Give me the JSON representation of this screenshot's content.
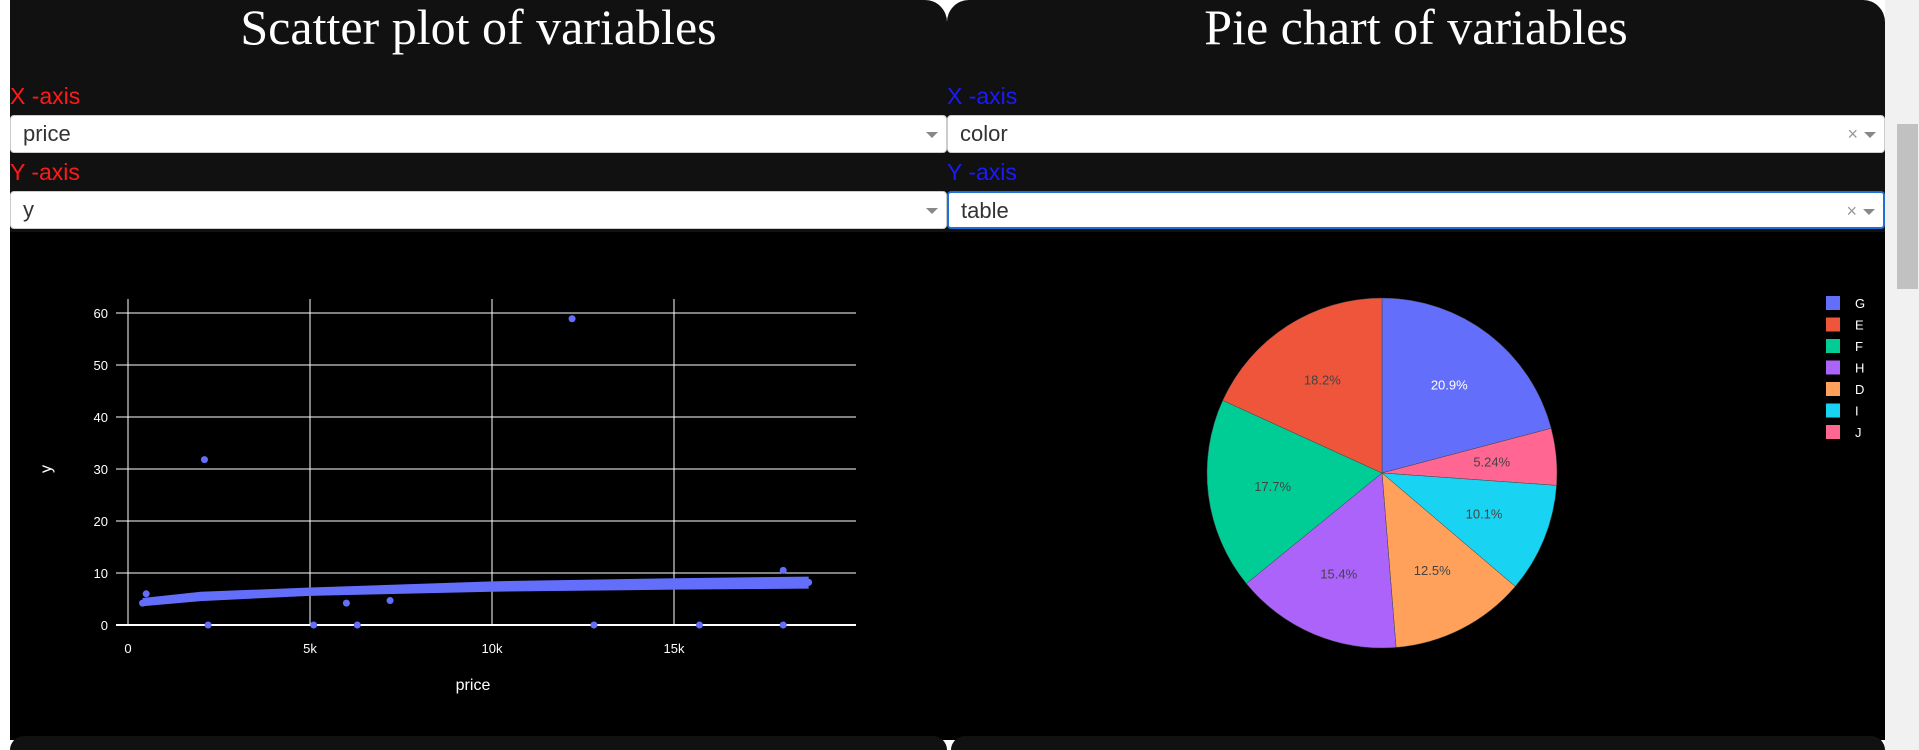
{
  "scatter_panel": {
    "title": "Scatter plot of variables",
    "x_label": "X -axis",
    "x_value": "price",
    "y_label": "Y -axis",
    "y_value": "y"
  },
  "pie_panel": {
    "title": "Pie chart of variables",
    "x_label": "X -axis",
    "x_value": "color",
    "y_label": "Y -axis",
    "y_value": "table",
    "clear_symbol": "×"
  },
  "chart_data": [
    {
      "type": "scatter",
      "xlabel": "price",
      "ylabel": "y",
      "xlim": [
        0,
        20000
      ],
      "ylim": [
        0,
        60
      ],
      "x_ticks": [
        0,
        5000,
        10000,
        15000
      ],
      "x_tick_labels": [
        "0",
        "5k",
        "10k",
        "15k"
      ],
      "y_ticks": [
        0,
        10,
        20,
        30,
        40,
        50,
        60
      ],
      "y_tick_labels": [
        "0",
        "10",
        "20",
        "30",
        "40",
        "50",
        "60"
      ],
      "grid": true,
      "color": "#636efa",
      "points": [
        [
          2100,
          31.8
        ],
        [
          12200,
          58.9
        ],
        [
          2200,
          0
        ],
        [
          5100,
          0
        ],
        [
          6300,
          0
        ],
        [
          12800,
          0
        ],
        [
          15700,
          0
        ],
        [
          18000,
          0
        ],
        [
          500,
          6
        ],
        [
          6000,
          4.2
        ],
        [
          7200,
          4.7
        ],
        [
          18000,
          10.5
        ],
        [
          400,
          4.2
        ],
        [
          1000,
          4.8
        ],
        [
          2000,
          5.4
        ],
        [
          3000,
          5.8
        ],
        [
          4000,
          6.1
        ],
        [
          5000,
          6.4
        ],
        [
          6000,
          6.6
        ],
        [
          7000,
          6.8
        ],
        [
          8000,
          7.0
        ],
        [
          9000,
          7.2
        ],
        [
          10000,
          7.3
        ],
        [
          11000,
          7.4
        ],
        [
          12000,
          7.5
        ],
        [
          13000,
          7.6
        ],
        [
          14000,
          7.7
        ],
        [
          15000,
          7.8
        ],
        [
          16000,
          7.9
        ],
        [
          17000,
          8.0
        ],
        [
          18000,
          8.1
        ],
        [
          18700,
          8.2
        ]
      ],
      "band_low": [
        [
          400,
          3.6
        ],
        [
          2000,
          4.6
        ],
        [
          5000,
          5.6
        ],
        [
          10000,
          6.4
        ],
        [
          15000,
          6.8
        ],
        [
          18700,
          7.0
        ]
      ],
      "band_high": [
        [
          400,
          5.2
        ],
        [
          2000,
          6.4
        ],
        [
          5000,
          7.2
        ],
        [
          10000,
          8.4
        ],
        [
          15000,
          9.0
        ],
        [
          18700,
          9.3
        ]
      ]
    },
    {
      "type": "pie",
      "slices": [
        {
          "label": "G",
          "value": 20.9,
          "text": "20.9%",
          "color": "#636efa"
        },
        {
          "label": "J",
          "value": 5.24,
          "text": "5.24%",
          "color": "#ff6692"
        },
        {
          "label": "I",
          "value": 10.1,
          "text": "10.1%",
          "color": "#19d3f3"
        },
        {
          "label": "D",
          "value": 12.5,
          "text": "12.5%",
          "color": "#ffa15a"
        },
        {
          "label": "H",
          "value": 15.4,
          "text": "15.4%",
          "color": "#ab63fa"
        },
        {
          "label": "F",
          "value": 17.7,
          "text": "17.7%",
          "color": "#00cc96"
        },
        {
          "label": "E",
          "value": 18.2,
          "text": "18.2%",
          "color": "#ef553b"
        }
      ],
      "legend": [
        {
          "label": "G",
          "color": "#636efa"
        },
        {
          "label": "E",
          "color": "#ef553b"
        },
        {
          "label": "F",
          "color": "#00cc96"
        },
        {
          "label": "H",
          "color": "#ab63fa"
        },
        {
          "label": "D",
          "color": "#ffa15a"
        },
        {
          "label": "I",
          "color": "#19d3f3"
        },
        {
          "label": "J",
          "color": "#ff6692"
        }
      ],
      "legend_position": "right"
    }
  ]
}
